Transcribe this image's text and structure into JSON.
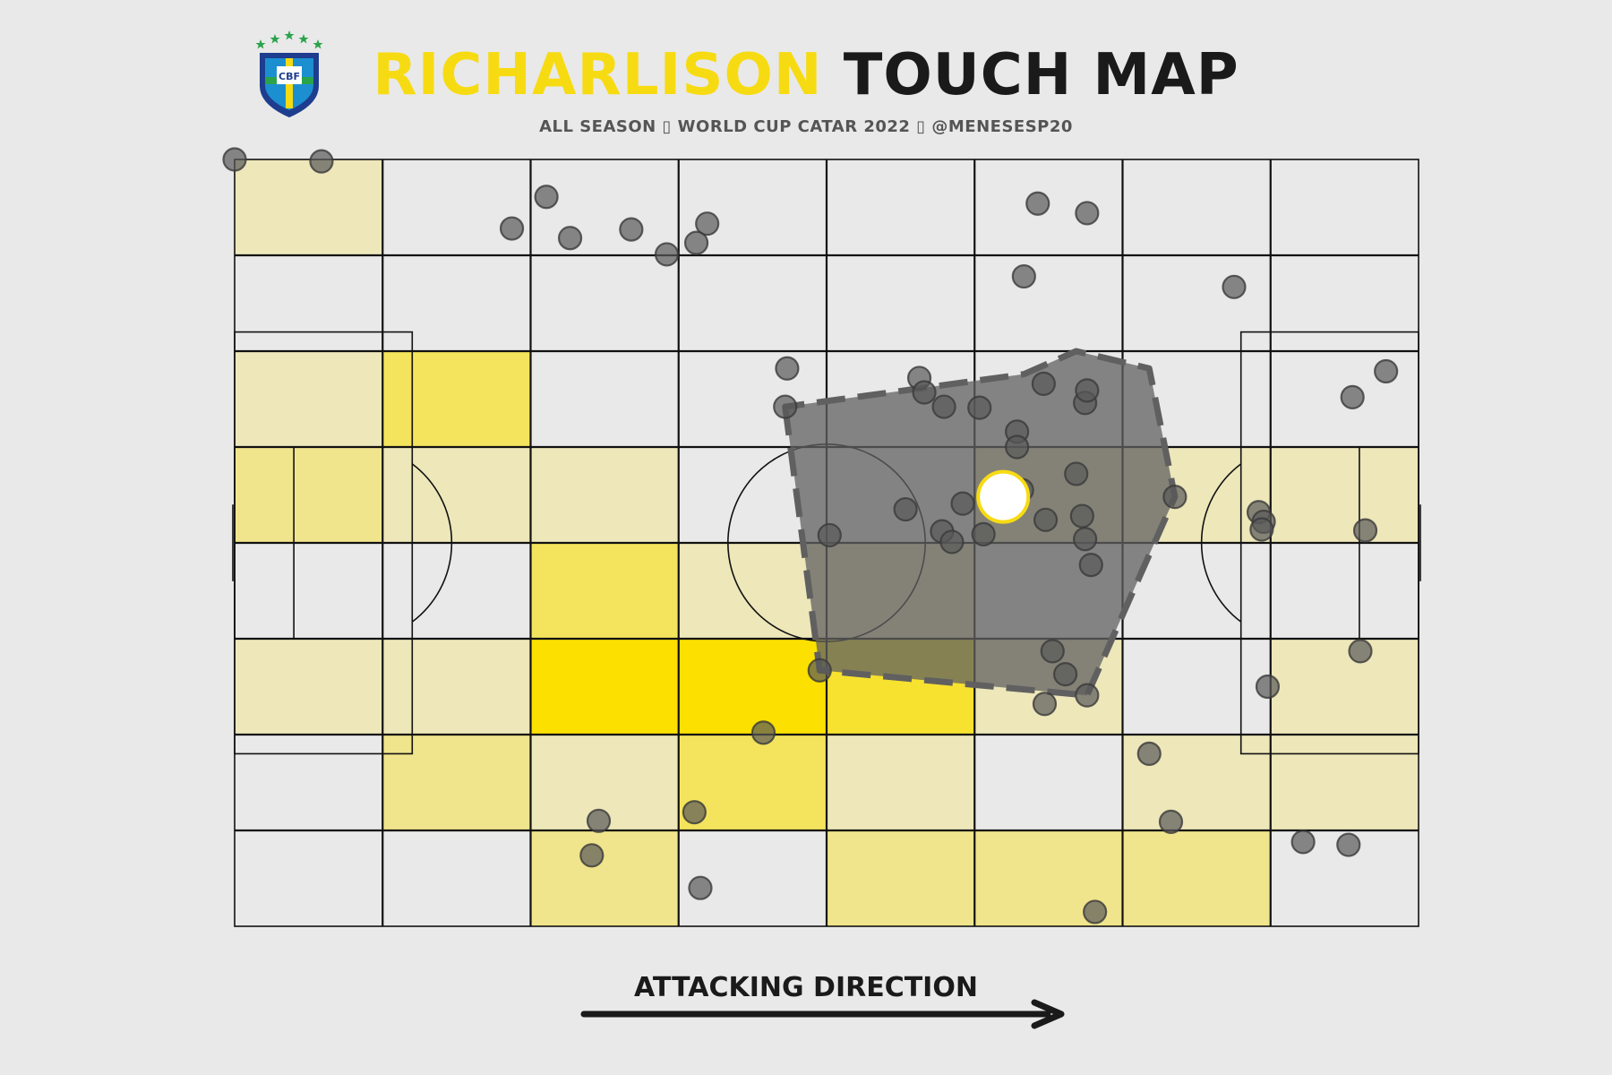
{
  "header": {
    "title_highlight": "RICHARLISON",
    "title_rest": "TOUCH MAP",
    "subtitle": "ALL SEASON ▯ WORLD CUP CATAR 2022 ▯ @MENESESP20"
  },
  "logo": {
    "text": "CBF",
    "icon": "cbf-crest-icon"
  },
  "direction": {
    "label": "ATTACKING DIRECTION",
    "icon": "arrow-right-icon"
  },
  "colors": {
    "background": "#e9e9e9",
    "heat_low": "#e9e9e9",
    "heat_high": "#fbe000",
    "highlight": "#f7db12",
    "hull_fill": "#606060",
    "point_fill": "#585858",
    "line": "#111111"
  },
  "chart_data": {
    "type": "scatter",
    "xlim": [
      0,
      120
    ],
    "ylim": [
      0,
      80
    ],
    "bins": {
      "x": 8,
      "y": 8
    },
    "heatmap_counts": [
      [
        1,
        0,
        0,
        0,
        0,
        0,
        0,
        0
      ],
      [
        0,
        0,
        0,
        0,
        0,
        0,
        0,
        0
      ],
      [
        1,
        3,
        0,
        0,
        0,
        0,
        0,
        0
      ],
      [
        2,
        1,
        1,
        0,
        0,
        1,
        1,
        1
      ],
      [
        0,
        0,
        3,
        1,
        1,
        0,
        0,
        0
      ],
      [
        1,
        1,
        5,
        5,
        4,
        1,
        0,
        1
      ],
      [
        0,
        2,
        1,
        3,
        1,
        0,
        1,
        1
      ],
      [
        0,
        0,
        2,
        0,
        2,
        2,
        2,
        0
      ]
    ],
    "points": [
      [
        0,
        0
      ],
      [
        8.8,
        0.2
      ],
      [
        40.2,
        7.3
      ],
      [
        47.9,
        6.7
      ],
      [
        43.8,
        9.9
      ],
      [
        31.6,
        3.9
      ],
      [
        28.1,
        7.2
      ],
      [
        34.0,
        8.2
      ],
      [
        46.8,
        8.7
      ],
      [
        81.4,
        4.6
      ],
      [
        86.4,
        5.6
      ],
      [
        80.0,
        12.2
      ],
      [
        101.3,
        13.3
      ],
      [
        86.2,
        25.4
      ],
      [
        116.7,
        22.1
      ],
      [
        113.3,
        24.8
      ],
      [
        56.0,
        21.8
      ],
      [
        69.4,
        22.8
      ],
      [
        69.9,
        24.3
      ],
      [
        55.8,
        25.8
      ],
      [
        71.9,
        25.8
      ],
      [
        79.3,
        28.4
      ],
      [
        86.4,
        24.1
      ],
      [
        82.0,
        23.4
      ],
      [
        79.3,
        30.0
      ],
      [
        75.5,
        25.9
      ],
      [
        95.3,
        35.2
      ],
      [
        103.8,
        36.8
      ],
      [
        104.3,
        37.8
      ],
      [
        104.1,
        38.6
      ],
      [
        114.6,
        38.7
      ],
      [
        75.9,
        39.1
      ],
      [
        73.8,
        35.9
      ],
      [
        85.3,
        32.8
      ],
      [
        85.9,
        37.2
      ],
      [
        82.2,
        37.6
      ],
      [
        79.8,
        34.5
      ],
      [
        86.8,
        42.3
      ],
      [
        86.2,
        39.6
      ],
      [
        60.3,
        39.2
      ],
      [
        68.0,
        36.5
      ],
      [
        71.7,
        38.8
      ],
      [
        72.7,
        39.9
      ],
      [
        84.2,
        53.7
      ],
      [
        82.9,
        51.3
      ],
      [
        59.3,
        53.3
      ],
      [
        82.1,
        56.8
      ],
      [
        86.4,
        55.9
      ],
      [
        104.7,
        55.0
      ],
      [
        114.1,
        51.3
      ],
      [
        53.6,
        59.8
      ],
      [
        46.6,
        68.1
      ],
      [
        36.9,
        69.0
      ],
      [
        36.2,
        72.6
      ],
      [
        92.7,
        62.0
      ],
      [
        94.9,
        69.1
      ],
      [
        112.9,
        71.5
      ],
      [
        108.3,
        71.2
      ],
      [
        47.2,
        76.0
      ],
      [
        87.2,
        78.5
      ]
    ],
    "average_position": [
      77.9,
      35.2
    ],
    "convex_hull": [
      [
        55.8,
        25.8
      ],
      [
        59.3,
        53.3
      ],
      [
        86.4,
        55.9
      ],
      [
        95.3,
        35.2
      ],
      [
        92.7,
        21.8
      ],
      [
        85.3,
        20.0
      ],
      [
        80.0,
        22.4
      ]
    ],
    "grid": true
  }
}
